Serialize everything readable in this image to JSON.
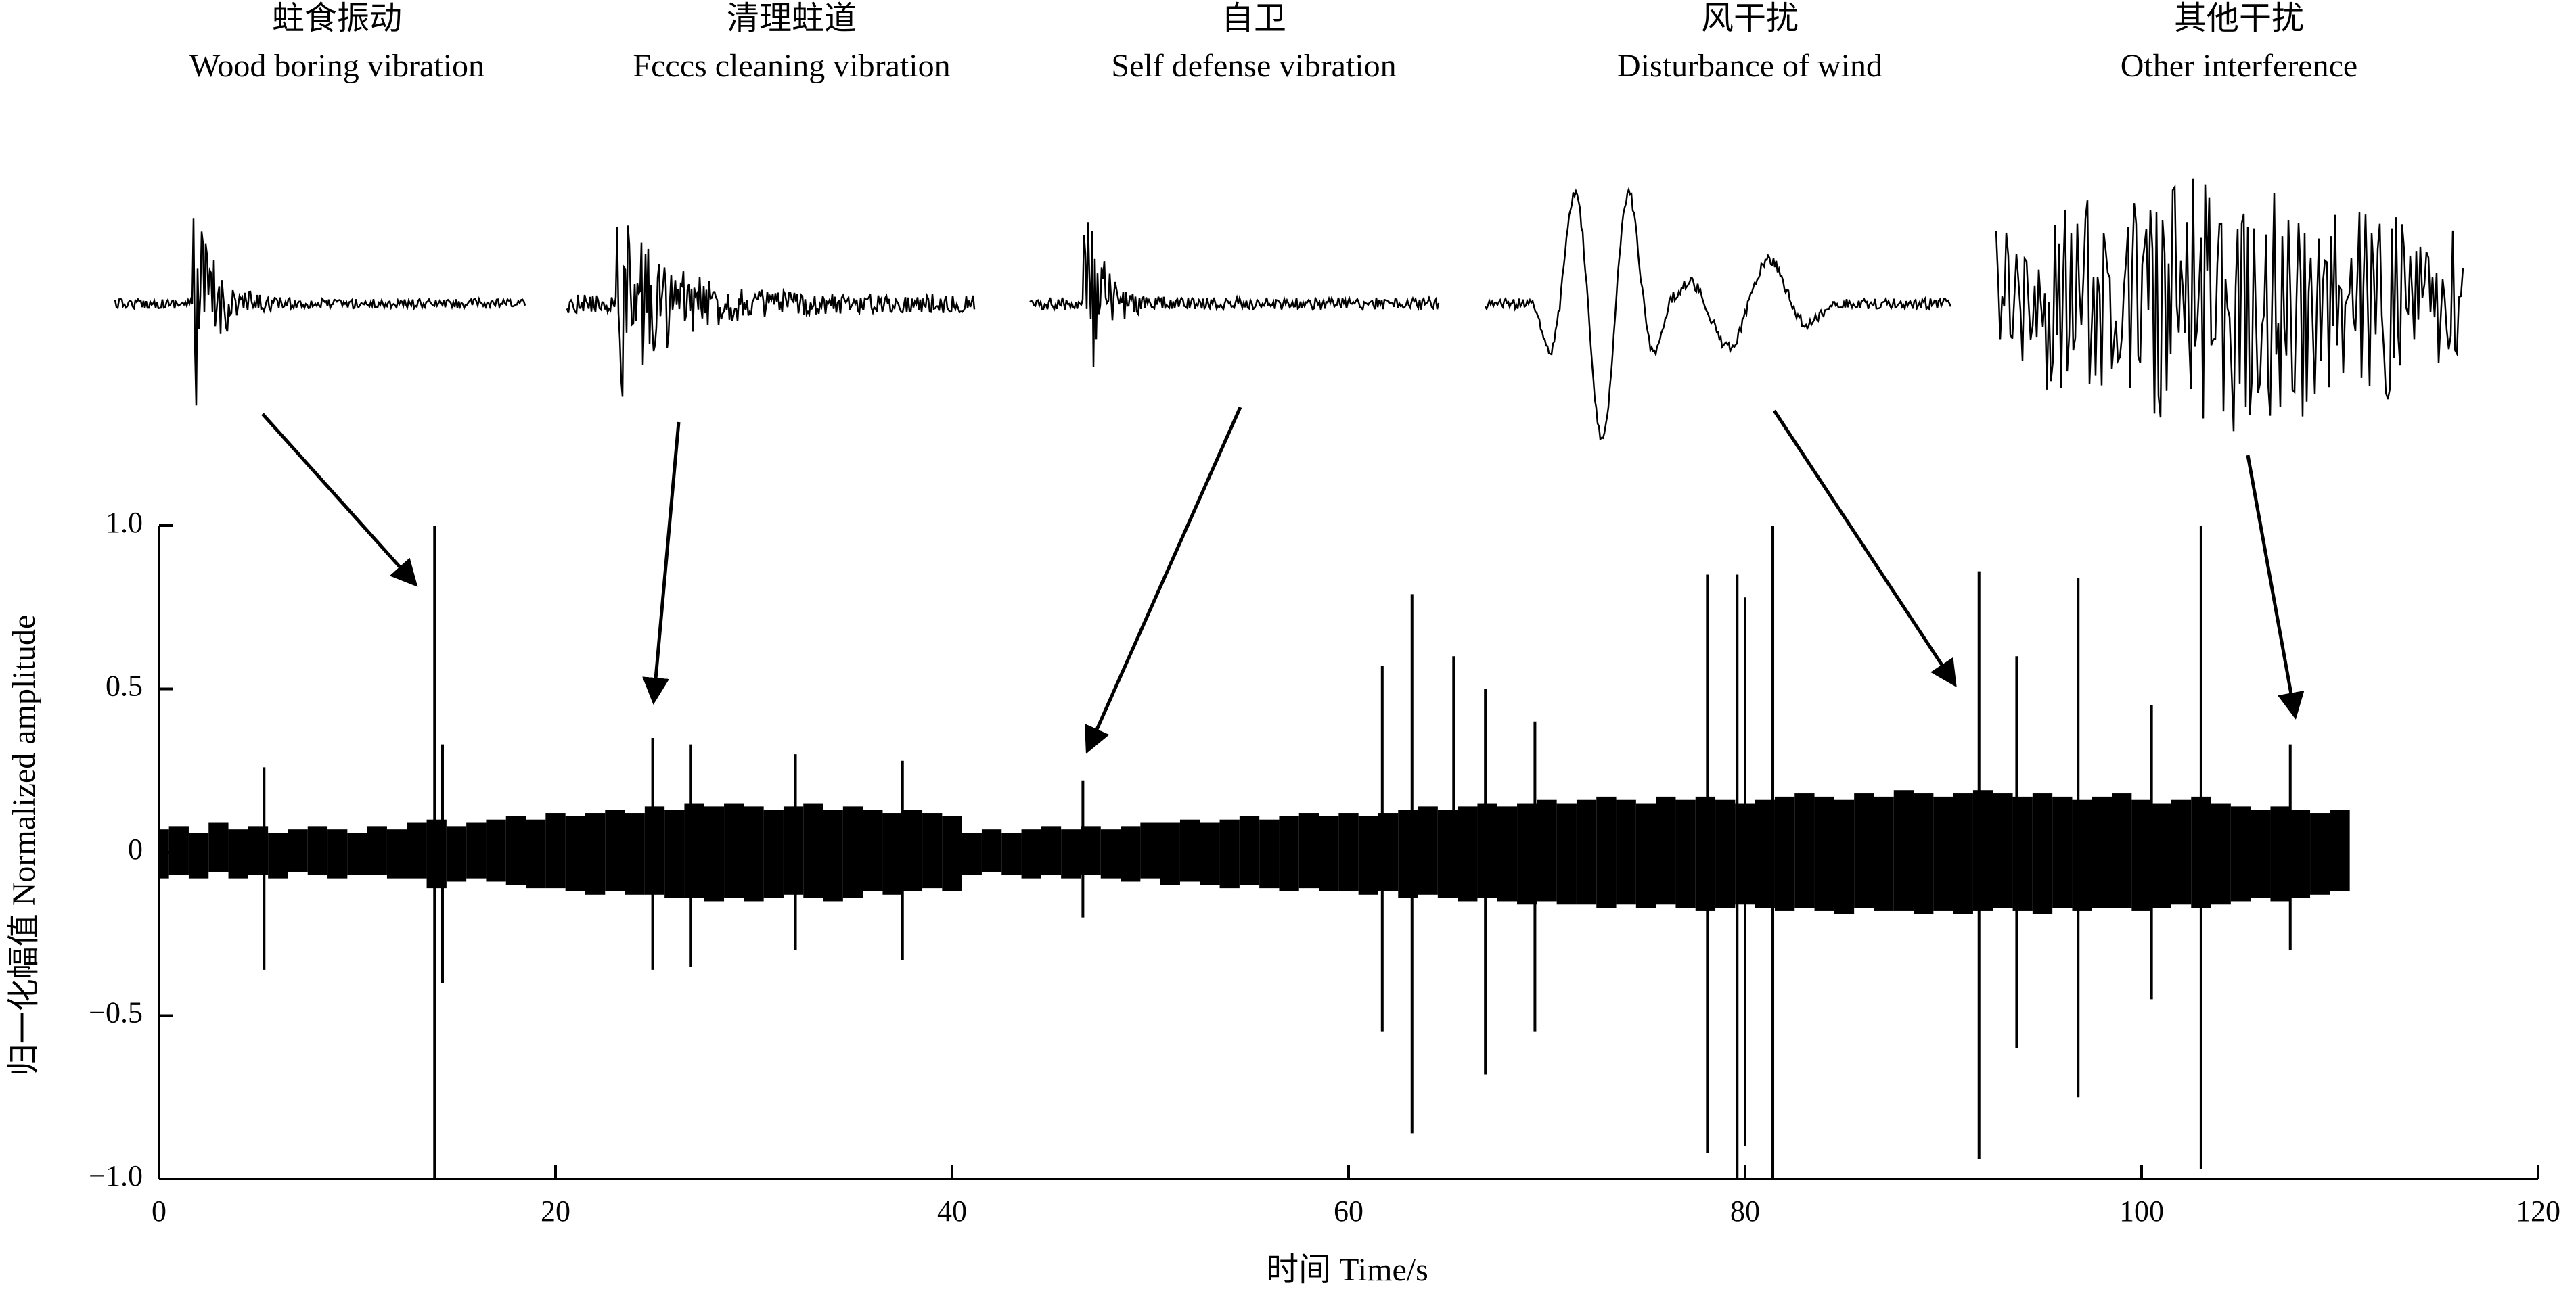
{
  "chart_data": {
    "type": "line",
    "xlabel": "时间  Time/s",
    "ylabel": "归一化幅值 Normalized amplitude",
    "xlim": [
      0,
      120
    ],
    "ylim": [
      -1,
      1
    ],
    "xticks": [
      0,
      20,
      40,
      60,
      80,
      100,
      120
    ],
    "yticks": [
      {
        "value": -1,
        "label": "−1.0"
      },
      {
        "value": -0.5,
        "label": "−0.5"
      },
      0,
      0.5,
      {
        "value": 1,
        "label": "1.0"
      }
    ],
    "x": [
      0,
      1,
      2,
      3,
      4,
      5,
      6,
      7,
      8,
      9,
      10,
      11,
      12,
      13,
      14,
      15,
      16,
      17,
      18,
      19,
      20,
      21,
      22,
      23,
      24,
      25,
      26,
      27,
      28,
      29,
      30,
      31,
      32,
      33,
      34,
      35,
      36,
      37,
      38,
      39,
      40,
      41,
      42,
      43,
      44,
      45,
      46,
      47,
      48,
      49,
      50,
      51,
      52,
      53,
      54,
      55,
      56,
      57,
      58,
      59,
      60,
      61,
      62,
      63,
      64,
      65,
      66,
      67,
      68,
      69,
      70,
      71,
      72,
      73,
      74,
      75,
      76,
      77,
      78,
      79,
      80,
      81,
      82,
      83,
      84,
      85,
      86,
      87,
      88,
      89,
      90,
      91,
      92,
      93,
      94,
      95,
      96,
      97,
      98,
      99,
      100,
      101,
      102,
      103,
      104,
      105,
      106,
      107,
      108,
      109,
      110
    ],
    "series": [
      {
        "color": "#000000",
        "values": [
          0.07,
          0.08,
          0.06,
          0.09,
          0.07,
          0.08,
          0.06,
          0.07,
          0.08,
          0.07,
          0.06,
          0.08,
          0.07,
          0.09,
          0.1,
          0.08,
          0.09,
          0.1,
          0.11,
          0.1,
          0.12,
          0.11,
          0.12,
          0.13,
          0.12,
          0.14,
          0.13,
          0.15,
          0.14,
          0.15,
          0.14,
          0.13,
          0.14,
          0.15,
          0.13,
          0.14,
          0.13,
          0.12,
          0.13,
          0.12,
          0.11,
          0.06,
          0.07,
          0.06,
          0.07,
          0.08,
          0.07,
          0.08,
          0.07,
          0.08,
          0.09,
          0.09,
          0.1,
          0.09,
          0.1,
          0.11,
          0.1,
          0.11,
          0.12,
          0.11,
          0.12,
          0.11,
          0.12,
          0.13,
          0.14,
          0.13,
          0.14,
          0.15,
          0.14,
          0.15,
          0.16,
          0.15,
          0.16,
          0.17,
          0.16,
          0.15,
          0.17,
          0.16,
          0.17,
          0.16,
          0.15,
          0.16,
          0.17,
          0.18,
          0.17,
          0.16,
          0.18,
          0.17,
          0.19,
          0.18,
          0.17,
          0.18,
          0.19,
          0.18,
          0.17,
          0.18,
          0.17,
          0.16,
          0.17,
          0.18,
          0.16,
          0.15,
          0.16,
          0.17,
          0.15,
          0.14,
          0.13,
          0.14,
          0.13,
          0.12,
          0.13
        ]
      },
      {
        "color": "#000000",
        "values": [
          -0.08,
          -0.07,
          -0.08,
          -0.06,
          -0.08,
          -0.07,
          -0.08,
          -0.06,
          -0.07,
          -0.08,
          -0.07,
          -0.07,
          -0.08,
          -0.08,
          -0.11,
          -0.09,
          -0.08,
          -0.09,
          -0.1,
          -0.11,
          -0.11,
          -0.12,
          -0.13,
          -0.12,
          -0.13,
          -0.13,
          -0.14,
          -0.14,
          -0.15,
          -0.14,
          -0.15,
          -0.14,
          -0.13,
          -0.14,
          -0.15,
          -0.14,
          -0.12,
          -0.13,
          -0.12,
          -0.11,
          -0.12,
          -0.07,
          -0.06,
          -0.07,
          -0.08,
          -0.07,
          -0.08,
          -0.07,
          -0.08,
          -0.09,
          -0.08,
          -0.1,
          -0.09,
          -0.1,
          -0.11,
          -0.1,
          -0.11,
          -0.12,
          -0.11,
          -0.12,
          -0.12,
          -0.13,
          -0.12,
          -0.14,
          -0.13,
          -0.14,
          -0.15,
          -0.14,
          -0.15,
          -0.16,
          -0.15,
          -0.16,
          -0.16,
          -0.17,
          -0.16,
          -0.17,
          -0.16,
          -0.17,
          -0.18,
          -0.17,
          -0.16,
          -0.17,
          -0.18,
          -0.17,
          -0.18,
          -0.19,
          -0.17,
          -0.18,
          -0.18,
          -0.19,
          -0.18,
          -0.19,
          -0.18,
          -0.17,
          -0.18,
          -0.19,
          -0.17,
          -0.18,
          -0.17,
          -0.17,
          -0.18,
          -0.17,
          -0.16,
          -0.17,
          -0.16,
          -0.15,
          -0.14,
          -0.15,
          -0.14,
          -0.13,
          -0.12
        ]
      },
      {
        "color": "#000000",
        "x": [
          5.3,
          13.9,
          14.3,
          24.9,
          26.8,
          32.1,
          37.5,
          46.6,
          61.7,
          63.2,
          65.3,
          66.9,
          69.4,
          78.1,
          79.6,
          80.0,
          81.4,
          91.8,
          93.7,
          96.8,
          100.5,
          103.0,
          107.5
        ],
        "values": [
          0.26,
          1.0,
          0.33,
          0.35,
          0.33,
          0.3,
          0.28,
          0.22,
          0.57,
          0.79,
          0.6,
          0.5,
          0.4,
          0.85,
          0.85,
          0.78,
          1.0,
          0.86,
          0.6,
          0.84,
          0.45,
          1.0,
          0.33
        ]
      },
      {
        "color": "#000000",
        "x": [
          5.3,
          13.9,
          14.3,
          24.9,
          26.8,
          32.1,
          37.5,
          46.6,
          61.7,
          63.2,
          66.9,
          69.4,
          78.1,
          79.6,
          80.0,
          81.4,
          91.8,
          93.7,
          96.8,
          100.5,
          103.0,
          107.5
        ],
        "values": [
          -0.36,
          -1.0,
          -0.4,
          -0.36,
          -0.35,
          -0.3,
          -0.33,
          -0.2,
          -0.55,
          -0.86,
          -0.68,
          -0.55,
          -0.92,
          -1.0,
          -0.9,
          -1.0,
          -0.94,
          -0.6,
          -0.75,
          -0.45,
          -0.97,
          -0.3
        ]
      }
    ],
    "annotations": [
      {
        "zh": "蛀食振动",
        "en": "Wood boring vibration"
      },
      {
        "zh": "清理蛀道",
        "en": "Fcccs cleaning vibration"
      },
      {
        "zh": "自卫",
        "en": "Self defense vibration"
      },
      {
        "zh": "风干扰",
        "en": "Disturbance of wind"
      },
      {
        "zh": "其他干扰",
        "en": "Other interference"
      }
    ]
  }
}
